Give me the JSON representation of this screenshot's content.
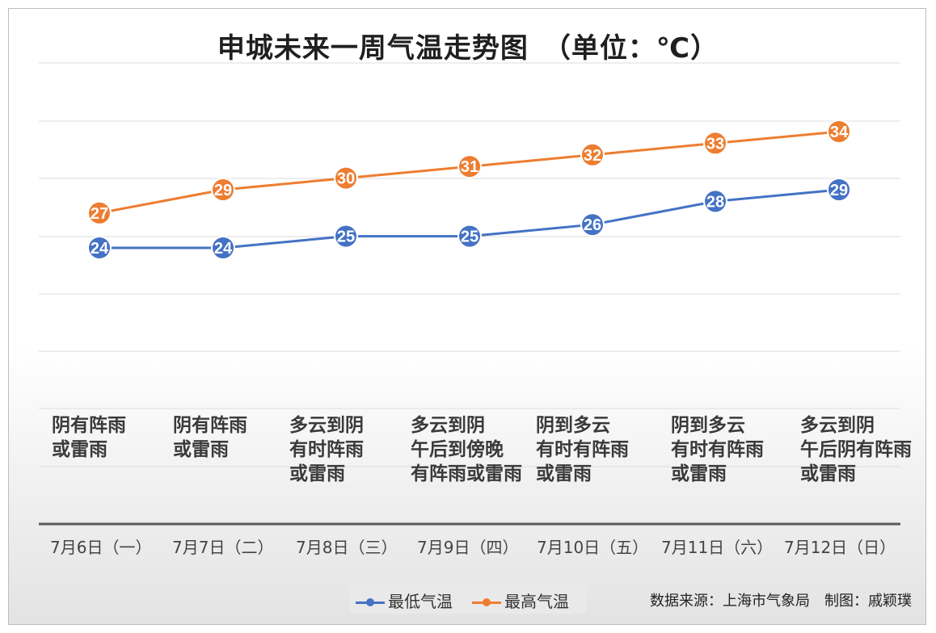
{
  "title": "申城未来一周气温走势图　（单位：℃）",
  "colors": {
    "low": "#4472C4",
    "high": "#ED7D31"
  },
  "chart_data": {
    "type": "line",
    "title": "申城未来一周气温走势图　（单位：℃）",
    "categories": [
      "7月6日（一）",
      "7月7日（二）",
      "7月8日（三）",
      "7月9日（四）",
      "7月10日（五）",
      "7月11日（六）",
      "7月12日（日）"
    ],
    "series": [
      {
        "name": "最低气温",
        "values": [
          24,
          24,
          25,
          25,
          26,
          28,
          29
        ]
      },
      {
        "name": "最高气温",
        "values": [
          27,
          29,
          30,
          31,
          32,
          33,
          34
        ]
      }
    ],
    "weather": [
      "阴有阵雨\n或雷雨",
      "阴有阵雨\n或雷雨",
      "多云到阴\n有时阵雨\n或雷雨",
      "多云到阴\n午后到傍晚\n有阵雨或雷雨",
      "阴到多云\n有时有阵雨\n或雷雨",
      "阴到多云\n有时有阵雨\n或雷雨",
      "多云到阴\n午后阴有阵雨\n或雷雨"
    ],
    "legend": [
      "最低气温",
      "最高气温"
    ],
    "grid": true
  },
  "source": "数据来源：上海市气象局　制图：戚颖璞"
}
